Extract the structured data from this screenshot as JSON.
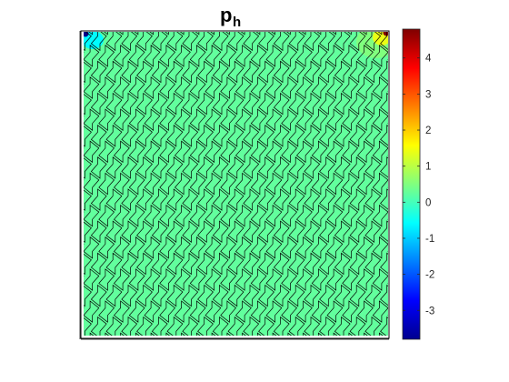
{
  "chart_data": {
    "type": "heatmap",
    "title": {
      "base": "p",
      "subscript": "h"
    },
    "description_of_field": "scalar field on a polygonal (hexagon-like) mesh over the unit square",
    "grid": false,
    "axes_visible": false,
    "field_level_typical": 0.25,
    "corner_values": [
      {
        "corner": "top-left",
        "value": -3.7
      },
      {
        "corner": "top-left-near",
        "value": -0.6
      },
      {
        "corner": "top-right",
        "value": 4.8
      },
      {
        "corner": "top-right-near",
        "value": 1.4
      },
      {
        "corner": "top-right-halo",
        "value": 0.6
      }
    ],
    "colorbar": {
      "colormap": "jet",
      "clim": [
        -3.8,
        4.8
      ],
      "ticks": [
        4,
        3,
        2,
        1,
        0,
        -1,
        -2,
        -3
      ],
      "tick_labels": [
        "4",
        "3",
        "2",
        "1",
        "0",
        "-1",
        "-2",
        "-3"
      ]
    }
  }
}
